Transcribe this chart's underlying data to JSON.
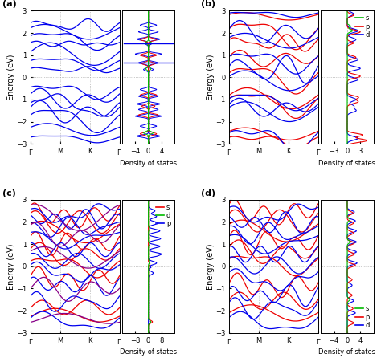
{
  "figsize": [
    4.74,
    4.46
  ],
  "dpi": 100,
  "background": "#ffffff",
  "ylim": [
    -3,
    3
  ],
  "yticks": [
    -3,
    -2,
    -1,
    0,
    1,
    2,
    3
  ],
  "kpoints": [
    "$\\Gamma$",
    "M",
    "K",
    "$\\Gamma$"
  ],
  "kpos": [
    0,
    1,
    2,
    3
  ],
  "panel_labels": [
    "(a)",
    "(b)",
    "(c)",
    "(d)"
  ],
  "color_blue": "#0000ee",
  "color_red": "#ee0000",
  "color_green": "#00bb00",
  "color_purple": "#880088",
  "dos_xlim_a": [
    -8,
    8
  ],
  "dos_xlim_b": [
    -6,
    6
  ],
  "dos_xlim_c": [
    -16,
    16
  ],
  "dos_xlim_d": [
    -8,
    8
  ],
  "dos_xticks_a": [
    -4,
    0,
    4
  ],
  "dos_xticks_b": [
    -3,
    0,
    3
  ],
  "dos_xticks_c": [
    -8,
    0,
    8
  ],
  "dos_xticks_d": [
    -4,
    0,
    4
  ]
}
